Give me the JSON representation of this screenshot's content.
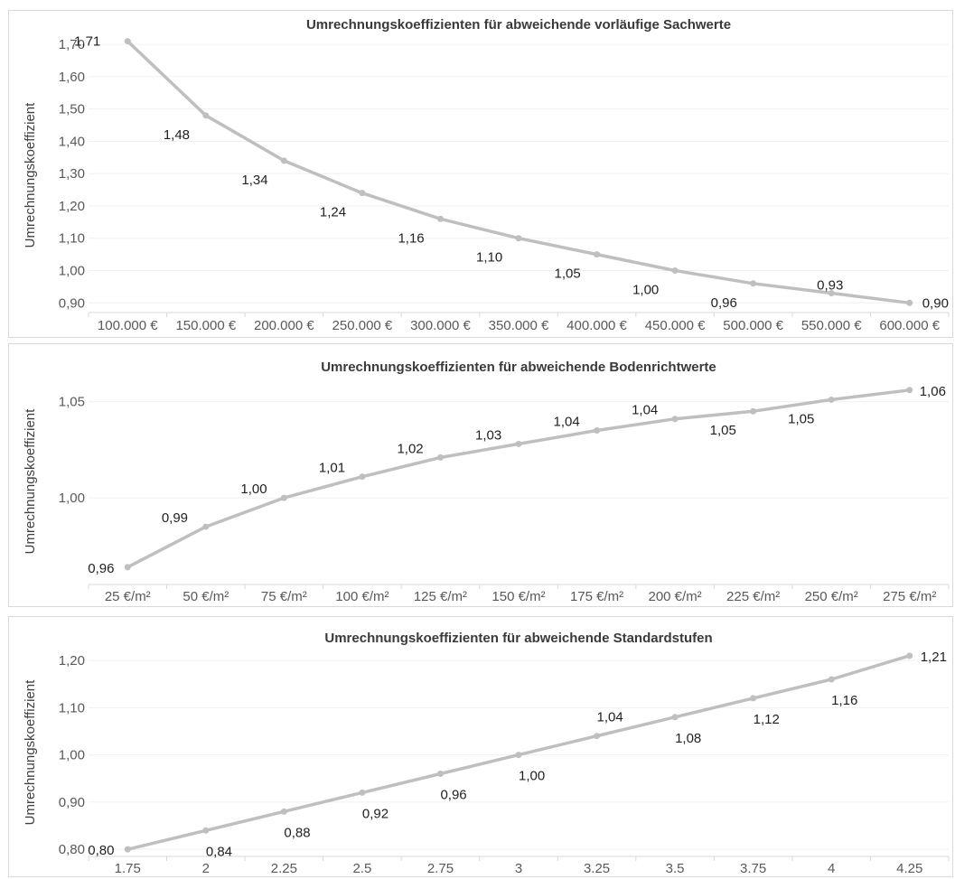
{
  "chart_data": [
    {
      "type": "line",
      "title": "Umrechnungskoeffizienten für abweichende vorläufige Sachwerte",
      "ylabel": "Umrechnungskoeffizient",
      "xlabel": "",
      "categories": [
        "100.000 €",
        "150.000 €",
        "200.000 €",
        "250.000 €",
        "300.000 €",
        "350.000 €",
        "400.000 €",
        "450.000 €",
        "500.000 €",
        "550.000 €",
        "600.000 €"
      ],
      "values": [
        1.71,
        1.48,
        1.34,
        1.24,
        1.16,
        1.1,
        1.05,
        1.0,
        0.96,
        0.93,
        0.9
      ],
      "data_labels": [
        "1,71",
        "1,48",
        "1,34",
        "1,24",
        "1,16",
        "1,10",
        "1,05",
        "1,00",
        "0,96",
        "0,93",
        "0,90"
      ],
      "yticks": [
        0.9,
        1.0,
        1.1,
        1.2,
        1.3,
        1.4,
        1.5,
        1.6,
        1.7
      ],
      "ytick_labels": [
        "0,90",
        "1,00",
        "1,10",
        "1,20",
        "1,30",
        "1,40",
        "1,50",
        "1,60",
        "1,70"
      ],
      "ylim": [
        0.87,
        1.72
      ],
      "grid": true,
      "legend": "none",
      "color": "#bfbfbf"
    },
    {
      "type": "line",
      "title": "Umrechnungskoeffizienten für abweichende Bodenrichtwerte",
      "ylabel": "Umrechnungskoeffizient",
      "xlabel": "",
      "categories": [
        "25 €/m²",
        "50 €/m²",
        "75 €/m²",
        "100 €/m²",
        "125 €/m²",
        "150 €/m²",
        "175 €/m²",
        "200 €/m²",
        "225 €/m²",
        "250 €/m²",
        "275 €/m²"
      ],
      "values": [
        0.964,
        0.985,
        1.0,
        1.011,
        1.021,
        1.028,
        1.035,
        1.041,
        1.045,
        1.051,
        1.056
      ],
      "data_labels": [
        "0,96",
        "0,99",
        "1,00",
        "1,01",
        "1,02",
        "1,03",
        "1,04",
        "1,04",
        "1,05",
        "1,05",
        "1,06"
      ],
      "yticks": [
        1.0,
        1.05
      ],
      "ytick_labels": [
        "1,00",
        "1,05"
      ],
      "ylim": [
        0.955,
        1.062
      ],
      "grid": true,
      "legend": "none",
      "color": "#bfbfbf"
    },
    {
      "type": "line",
      "title": "Umrechnungskoeffizienten für abweichende Standardstufen",
      "ylabel": "Umrechnungskoeffizient",
      "xlabel": "",
      "categories": [
        "1.75",
        "2",
        "2.25",
        "2.5",
        "2.75",
        "3",
        "3.25",
        "3.5",
        "3.75",
        "4",
        "4.25"
      ],
      "values": [
        0.8,
        0.84,
        0.88,
        0.92,
        0.96,
        1.0,
        1.04,
        1.08,
        1.12,
        1.16,
        1.21
      ],
      "data_labels": [
        "0,80",
        "0,84",
        "0,88",
        "0,92",
        "0,96",
        "1,00",
        "1,04",
        "1,08",
        "1,12",
        "1,16",
        "1,21"
      ],
      "yticks": [
        0.8,
        0.9,
        1.0,
        1.1,
        1.2
      ],
      "ytick_labels": [
        "0,80",
        "0,90",
        "1,00",
        "1,10",
        "1,20"
      ],
      "ylim": [
        0.785,
        1.225
      ],
      "grid": true,
      "legend": "none",
      "color": "#bfbfbf"
    }
  ]
}
